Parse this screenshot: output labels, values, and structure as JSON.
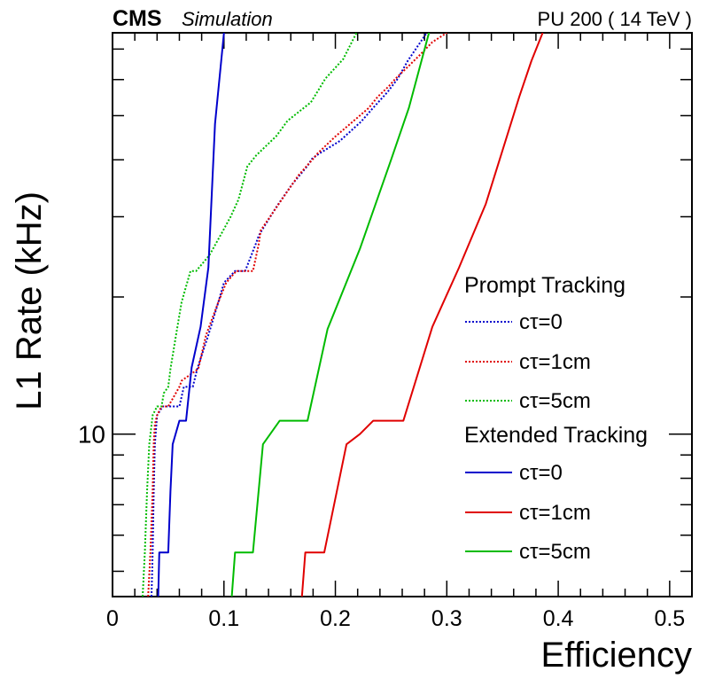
{
  "header": {
    "experiment": "CMS",
    "label": "Simulation",
    "condition": "PU 200 ( 14 TeV )"
  },
  "chart_data": {
    "type": "line",
    "title": "",
    "xlabel": "Efficiency",
    "ylabel": "L1 Rate (kHz)",
    "xlim": [
      0,
      0.52
    ],
    "ylim": [
      4.4,
      76
    ],
    "yscale": "log",
    "x_ticks": [
      "0",
      "0.1",
      "0.2",
      "0.3",
      "0.4",
      "0.5"
    ],
    "y_ticks": [
      "10"
    ],
    "grid": false,
    "legend_position": "right",
    "legend_groups": [
      {
        "title": "Prompt Tracking",
        "line_style": "dotted"
      },
      {
        "title": "Extended Tracking",
        "line_style": "solid"
      }
    ],
    "series": [
      {
        "name": "cτ=0",
        "group": "Prompt Tracking",
        "line_style": "dotted",
        "color": "#0000cc",
        "x": [
          0.035,
          0.036,
          0.037,
          0.038,
          0.04,
          0.045,
          0.052,
          0.06,
          0.064,
          0.072,
          0.076,
          0.086,
          0.095,
          0.1,
          0.11,
          0.115,
          0.119,
          0.124,
          0.129,
          0.131,
          0.134,
          0.147,
          0.161,
          0.175,
          0.179,
          0.185,
          0.204,
          0.223,
          0.233,
          0.247,
          0.256,
          0.265,
          0.282
        ],
        "y": [
          4.4,
          5.5,
          7.5,
          9.5,
          11.0,
          11.5,
          11.5,
          11.5,
          12.7,
          12.7,
          13.9,
          16.5,
          19.5,
          21.5,
          22.8,
          22.8,
          22.8,
          24.5,
          26.3,
          27.2,
          28.0,
          31.5,
          35.3,
          38.8,
          40.2,
          41.2,
          44.0,
          48.5,
          51.7,
          56.4,
          60.3,
          66.0,
          76.0
        ]
      },
      {
        "name": "cτ=1cm",
        "group": "Prompt Tracking",
        "line_style": "dotted",
        "color": "#e00000",
        "x": [
          0.032,
          0.034,
          0.036,
          0.037,
          0.038,
          0.04,
          0.044,
          0.05,
          0.06,
          0.062,
          0.077,
          0.084,
          0.095,
          0.102,
          0.111,
          0.115,
          0.126,
          0.131,
          0.133,
          0.154,
          0.167,
          0.18,
          0.184,
          0.2,
          0.209,
          0.23,
          0.238,
          0.248,
          0.254,
          0.265,
          0.276,
          0.287,
          0.3
        ],
        "y": [
          4.4,
          5.5,
          7.5,
          9.5,
          10.5,
          11.0,
          11.5,
          11.5,
          12.7,
          13.1,
          13.9,
          16.5,
          19.5,
          21.5,
          22.8,
          22.8,
          22.8,
          26.0,
          28.0,
          33.3,
          37.0,
          40.2,
          41.3,
          45.0,
          47.0,
          52.0,
          55.0,
          58.0,
          60.3,
          64.0,
          68.0,
          72.5,
          76.0
        ]
      },
      {
        "name": "cτ=5cm",
        "group": "Prompt Tracking",
        "line_style": "dotted",
        "color": "#00bb00",
        "x": [
          0.027,
          0.029,
          0.031,
          0.033,
          0.036,
          0.04,
          0.044,
          0.046,
          0.05,
          0.052,
          0.057,
          0.062,
          0.07,
          0.075,
          0.087,
          0.099,
          0.106,
          0.113,
          0.121,
          0.129,
          0.147,
          0.157,
          0.178,
          0.185,
          0.191,
          0.207,
          0.219
        ],
        "y": [
          4.4,
          5.5,
          7.5,
          9.5,
          11.0,
          11.5,
          11.5,
          12.3,
          12.7,
          13.9,
          16.5,
          19.5,
          22.8,
          22.8,
          24.7,
          27.9,
          30.0,
          32.7,
          38.7,
          40.9,
          45.1,
          48.7,
          53.5,
          57.0,
          60.3,
          66.5,
          76.0
        ]
      },
      {
        "name": "cτ=0",
        "group": "Extended Tracking",
        "line_style": "solid",
        "color": "#0000cc",
        "x": [
          0.041,
          0.042,
          0.047,
          0.05,
          0.052,
          0.054,
          0.06,
          0.061,
          0.066,
          0.071,
          0.079,
          0.086,
          0.092,
          0.1
        ],
        "y": [
          4.4,
          5.5,
          5.5,
          5.5,
          7.5,
          9.5,
          10.7,
          10.7,
          10.7,
          14.0,
          17.2,
          23.2,
          48.0,
          76.0
        ]
      },
      {
        "name": "cτ=1cm",
        "group": "Extended Tracking",
        "line_style": "solid",
        "color": "#e00000",
        "x": [
          0.17,
          0.173,
          0.19,
          0.21,
          0.222,
          0.234,
          0.261,
          0.287,
          0.311,
          0.335,
          0.365,
          0.376,
          0.386
        ],
        "y": [
          4.4,
          5.5,
          5.5,
          9.5,
          10.0,
          10.7,
          10.7,
          17.2,
          23.2,
          32.0,
          55.0,
          66.0,
          76.0
        ]
      },
      {
        "name": "cτ=5cm",
        "group": "Extended Tracking",
        "line_style": "solid",
        "color": "#00bb00",
        "x": [
          0.107,
          0.11,
          0.126,
          0.135,
          0.15,
          0.175,
          0.193,
          0.222,
          0.25,
          0.266,
          0.284
        ],
        "y": [
          4.4,
          5.5,
          5.5,
          9.5,
          10.7,
          10.7,
          17.0,
          25.5,
          40.0,
          52.0,
          76.0
        ]
      }
    ]
  }
}
